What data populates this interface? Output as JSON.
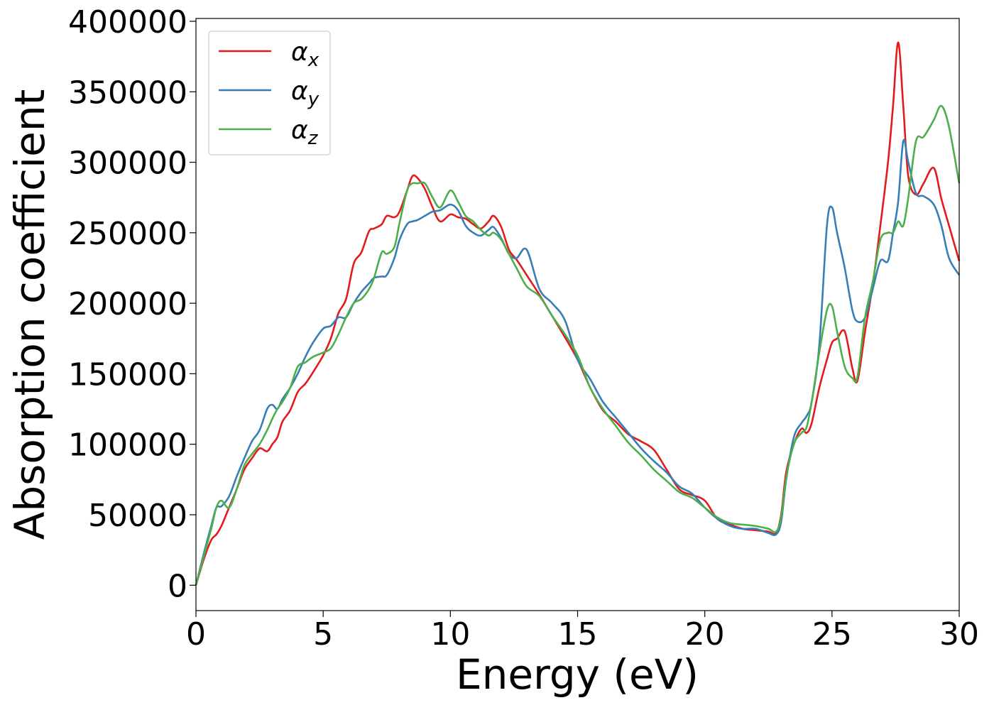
{
  "chart_data": {
    "type": "line",
    "title": "",
    "xlabel": "Energy (eV)",
    "ylabel": "Absorption coefficient",
    "xlim": [
      0,
      30
    ],
    "ylim": [
      -18000,
      402000
    ],
    "xticks": [
      0,
      5,
      10,
      15,
      20,
      25,
      30
    ],
    "xtick_labels": [
      "0",
      "5",
      "10",
      "15",
      "20",
      "25",
      "30"
    ],
    "yticks": [
      0,
      50000,
      100000,
      150000,
      200000,
      250000,
      300000,
      350000,
      400000
    ],
    "ytick_labels": [
      "0",
      "50000",
      "100000",
      "150000",
      "200000",
      "250000",
      "300000",
      "350000",
      "400000"
    ],
    "grid": false,
    "legend_position": "top-left",
    "series": [
      {
        "name": "α_x",
        "legend_main": "α",
        "legend_sub": "x",
        "color": "#e41a1c",
        "x": [
          0,
          0.3,
          0.6,
          0.8,
          1.0,
          1.3,
          1.6,
          1.9,
          2.2,
          2.5,
          2.8,
          3.0,
          3.2,
          3.4,
          3.7,
          4.0,
          4.3,
          4.6,
          5.0,
          5.3,
          5.6,
          5.9,
          6.2,
          6.5,
          6.8,
          7.0,
          7.3,
          7.5,
          7.8,
          8.0,
          8.3,
          8.5,
          8.7,
          9.0,
          9.3,
          9.6,
          10.0,
          10.3,
          10.6,
          10.9,
          11.2,
          11.5,
          11.7,
          12.0,
          12.3,
          12.6,
          13.0,
          13.5,
          14.0,
          14.5,
          15.0,
          15.5,
          16.0,
          16.5,
          17.0,
          17.5,
          18.0,
          18.5,
          19.0,
          19.5,
          20.0,
          20.5,
          21.0,
          21.5,
          22.0,
          22.5,
          22.8,
          23.0,
          23.2,
          23.5,
          23.8,
          24.0,
          24.2,
          24.5,
          24.8,
          25.0,
          25.2,
          25.5,
          25.8,
          26.0,
          26.3,
          26.6,
          26.9,
          27.2,
          27.4,
          27.6,
          27.8,
          28.0,
          28.3,
          28.6,
          29.0,
          29.3,
          29.6,
          30.0
        ],
        "y": [
          0,
          18000,
          32000,
          36000,
          42000,
          55000,
          68000,
          82000,
          90000,
          97000,
          95000,
          100000,
          105000,
          116000,
          124000,
          137000,
          143000,
          151000,
          163000,
          175000,
          193000,
          203000,
          228000,
          236000,
          251000,
          253000,
          256000,
          262000,
          261000,
          265000,
          280000,
          290000,
          289000,
          281000,
          268000,
          258000,
          263000,
          261000,
          260000,
          256000,
          253000,
          258000,
          262000,
          254000,
          238000,
          231000,
          220000,
          206000,
          191000,
          176000,
          160000,
          140000,
          124000,
          116000,
          107000,
          102000,
          96000,
          82000,
          68000,
          64000,
          60000,
          47000,
          43000,
          40000,
          39000,
          38000,
          37000,
          50000,
          80000,
          100000,
          111000,
          108000,
          115000,
          140000,
          160000,
          172000,
          175000,
          180000,
          154000,
          145000,
          180000,
          213000,
          255000,
          300000,
          340000,
          385000,
          340000,
          290000,
          277000,
          285000,
          296000,
          274000,
          255000,
          230000
        ]
      },
      {
        "name": "α_y",
        "legend_main": "α",
        "legend_sub": "y",
        "color": "#377eb8",
        "x": [
          0,
          0.3,
          0.6,
          0.8,
          1.0,
          1.3,
          1.6,
          1.9,
          2.2,
          2.5,
          2.8,
          3.0,
          3.2,
          3.4,
          3.7,
          4.0,
          4.3,
          4.6,
          5.0,
          5.3,
          5.6,
          5.9,
          6.2,
          6.5,
          6.8,
          7.0,
          7.3,
          7.5,
          7.8,
          8.0,
          8.3,
          8.5,
          8.7,
          9.0,
          9.3,
          9.6,
          10.0,
          10.3,
          10.6,
          10.9,
          11.2,
          11.5,
          11.7,
          12.0,
          12.3,
          12.6,
          13.0,
          13.5,
          14.0,
          14.5,
          15.0,
          15.5,
          16.0,
          16.5,
          17.0,
          17.5,
          18.0,
          18.5,
          19.0,
          19.5,
          20.0,
          20.5,
          21.0,
          21.5,
          22.0,
          22.5,
          22.8,
          23.0,
          23.2,
          23.5,
          23.8,
          24.0,
          24.2,
          24.5,
          24.8,
          25.0,
          25.2,
          25.5,
          25.8,
          26.0,
          26.3,
          26.6,
          26.9,
          27.2,
          27.4,
          27.6,
          27.8,
          28.0,
          28.3,
          28.6,
          29.0,
          29.3,
          29.6,
          30.0
        ],
        "y": [
          0,
          22000,
          42000,
          55000,
          56000,
          63000,
          77000,
          90000,
          102000,
          110000,
          125000,
          128000,
          125000,
          132000,
          140000,
          150000,
          162000,
          172000,
          182000,
          184000,
          190000,
          190000,
          200000,
          208000,
          214000,
          218000,
          219000,
          220000,
          232000,
          245000,
          256000,
          258000,
          259000,
          262000,
          265000,
          266000,
          270000,
          266000,
          255000,
          250000,
          248000,
          252000,
          254000,
          246000,
          235000,
          232000,
          238000,
          210000,
          200000,
          188000,
          160000,
          146000,
          130000,
          119000,
          108000,
          97000,
          88000,
          80000,
          70000,
          65000,
          55000,
          47000,
          42000,
          40000,
          40000,
          37000,
          36000,
          45000,
          75000,
          105000,
          115000,
          120000,
          130000,
          170000,
          255000,
          268000,
          250000,
          225000,
          195000,
          187000,
          190000,
          210000,
          230000,
          230000,
          250000,
          272000,
          315000,
          300000,
          278000,
          276000,
          270000,
          255000,
          232000,
          220000
        ]
      },
      {
        "name": "α_z",
        "legend_main": "α",
        "legend_sub": "z",
        "color": "#4daf4a",
        "x": [
          0,
          0.3,
          0.6,
          0.8,
          1.0,
          1.3,
          1.6,
          1.9,
          2.2,
          2.5,
          2.8,
          3.0,
          3.2,
          3.4,
          3.7,
          4.0,
          4.3,
          4.6,
          5.0,
          5.3,
          5.6,
          5.9,
          6.2,
          6.5,
          6.8,
          7.0,
          7.3,
          7.5,
          7.8,
          8.0,
          8.3,
          8.5,
          8.7,
          9.0,
          9.3,
          9.6,
          10.0,
          10.3,
          10.6,
          10.9,
          11.2,
          11.5,
          11.7,
          12.0,
          12.3,
          12.6,
          13.0,
          13.5,
          14.0,
          14.5,
          15.0,
          15.5,
          16.0,
          16.5,
          17.0,
          17.5,
          18.0,
          18.5,
          19.0,
          19.5,
          20.0,
          20.5,
          21.0,
          21.5,
          22.0,
          22.5,
          22.8,
          23.0,
          23.2,
          23.5,
          23.8,
          24.0,
          24.2,
          24.5,
          24.8,
          25.0,
          25.2,
          25.5,
          25.8,
          26.0,
          26.3,
          26.6,
          26.9,
          27.2,
          27.4,
          27.6,
          27.8,
          28.0,
          28.3,
          28.6,
          29.0,
          29.3,
          29.6,
          30.0
        ],
        "y": [
          0,
          20000,
          40000,
          55000,
          60000,
          55000,
          68000,
          85000,
          93000,
          100000,
          110000,
          118000,
          125000,
          130000,
          140000,
          155000,
          158000,
          162000,
          165000,
          168000,
          178000,
          190000,
          200000,
          203000,
          210000,
          218000,
          236000,
          235000,
          240000,
          257000,
          280000,
          285000,
          285000,
          285000,
          275000,
          268000,
          280000,
          272000,
          262000,
          258000,
          252000,
          248000,
          250000,
          245000,
          235000,
          225000,
          212000,
          205000,
          191000,
          178000,
          163000,
          140000,
          125000,
          113000,
          101000,
          92000,
          82000,
          74000,
          66000,
          62000,
          55000,
          48000,
          44000,
          43000,
          42000,
          40000,
          38000,
          48000,
          76000,
          100000,
          108000,
          112000,
          130000,
          165000,
          195000,
          198000,
          180000,
          155000,
          147000,
          148000,
          190000,
          215000,
          245000,
          250000,
          250000,
          258000,
          255000,
          275000,
          315000,
          318000,
          330000,
          340000,
          325000,
          285000
        ]
      }
    ]
  }
}
